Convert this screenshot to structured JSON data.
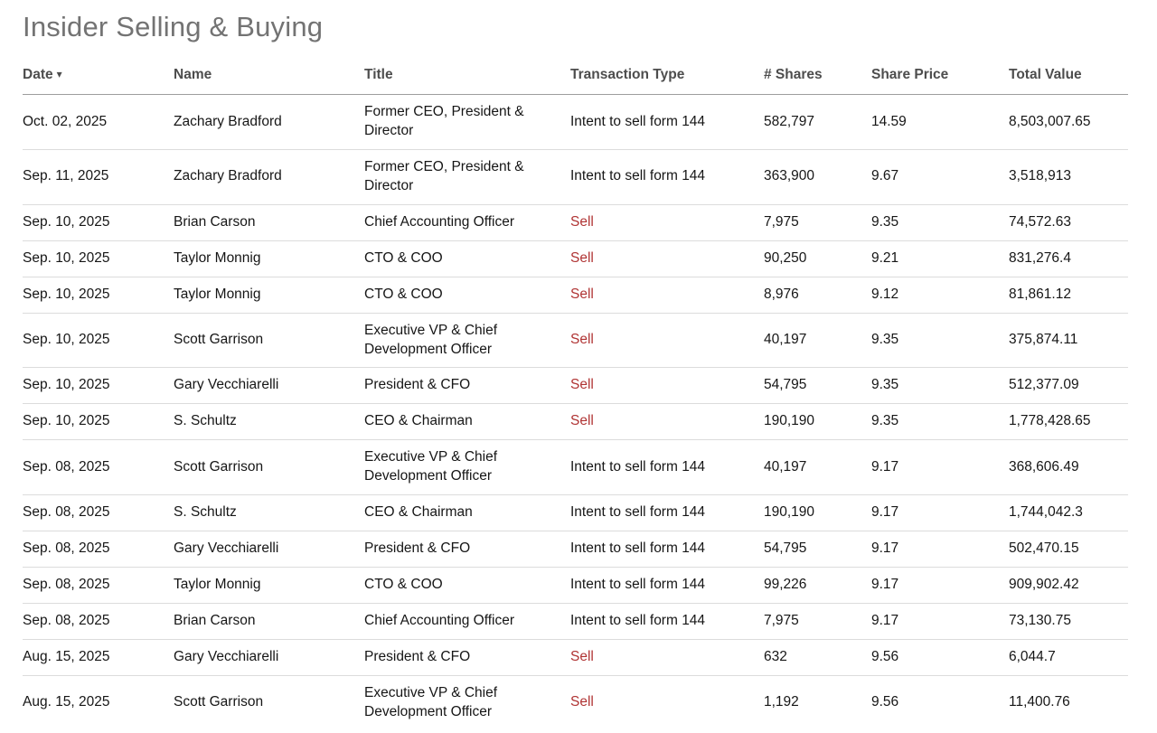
{
  "page": {
    "title": "Insider Selling & Buying"
  },
  "colors": {
    "title_gray": "#737373",
    "header_text": "#4d4d4d",
    "body_text": "#161616",
    "sell_red": "#b03434",
    "header_border": "#9e9e9e",
    "row_border": "#dcdcdc",
    "page_bg": "#ffffff"
  },
  "icons": {
    "sort_desc": "▾"
  },
  "table": {
    "columns": [
      "Date",
      "Name",
      "Title",
      "Transaction Type",
      "# Shares",
      "Share Price",
      "Total Value"
    ],
    "sorted_column": "Date",
    "sort_direction": "descending",
    "sell_transaction_label": "Sell",
    "rows": [
      {
        "date": "Oct. 02, 2025",
        "name": "Zachary Bradford",
        "title": "Former CEO, President & Director",
        "transaction_type": "Intent to sell form 144",
        "shares": "582,797",
        "share_price": "14.59",
        "total_value": "8,503,007.65"
      },
      {
        "date": "Sep. 11, 2025",
        "name": "Zachary Bradford",
        "title": "Former CEO, President & Director",
        "transaction_type": "Intent to sell form 144",
        "shares": "363,900",
        "share_price": "9.67",
        "total_value": "3,518,913"
      },
      {
        "date": "Sep. 10, 2025",
        "name": "Brian Carson",
        "title": "Chief Accounting Officer",
        "transaction_type": "Sell",
        "shares": "7,975",
        "share_price": "9.35",
        "total_value": "74,572.63"
      },
      {
        "date": "Sep. 10, 2025",
        "name": "Taylor Monnig",
        "title": "CTO & COO",
        "transaction_type": "Sell",
        "shares": "90,250",
        "share_price": "9.21",
        "total_value": "831,276.4"
      },
      {
        "date": "Sep. 10, 2025",
        "name": "Taylor Monnig",
        "title": "CTO & COO",
        "transaction_type": "Sell",
        "shares": "8,976",
        "share_price": "9.12",
        "total_value": "81,861.12"
      },
      {
        "date": "Sep. 10, 2025",
        "name": "Scott Garrison",
        "title": "Executive VP & Chief Development Officer",
        "transaction_type": "Sell",
        "shares": "40,197",
        "share_price": "9.35",
        "total_value": "375,874.11"
      },
      {
        "date": "Sep. 10, 2025",
        "name": "Gary Vecchiarelli",
        "title": "President & CFO",
        "transaction_type": "Sell",
        "shares": "54,795",
        "share_price": "9.35",
        "total_value": "512,377.09"
      },
      {
        "date": "Sep. 10, 2025",
        "name": "S. Schultz",
        "title": "CEO & Chairman",
        "transaction_type": "Sell",
        "shares": "190,190",
        "share_price": "9.35",
        "total_value": "1,778,428.65"
      },
      {
        "date": "Sep. 08, 2025",
        "name": "Scott Garrison",
        "title": "Executive VP & Chief Development Officer",
        "transaction_type": "Intent to sell form 144",
        "shares": "40,197",
        "share_price": "9.17",
        "total_value": "368,606.49"
      },
      {
        "date": "Sep. 08, 2025",
        "name": "S. Schultz",
        "title": "CEO & Chairman",
        "transaction_type": "Intent to sell form 144",
        "shares": "190,190",
        "share_price": "9.17",
        "total_value": "1,744,042.3"
      },
      {
        "date": "Sep. 08, 2025",
        "name": "Gary Vecchiarelli",
        "title": "President & CFO",
        "transaction_type": "Intent to sell form 144",
        "shares": "54,795",
        "share_price": "9.17",
        "total_value": "502,470.15"
      },
      {
        "date": "Sep. 08, 2025",
        "name": "Taylor Monnig",
        "title": "CTO & COO",
        "transaction_type": "Intent to sell form 144",
        "shares": "99,226",
        "share_price": "9.17",
        "total_value": "909,902.42"
      },
      {
        "date": "Sep. 08, 2025",
        "name": "Brian Carson",
        "title": "Chief Accounting Officer",
        "transaction_type": "Intent to sell form 144",
        "shares": "7,975",
        "share_price": "9.17",
        "total_value": "73,130.75"
      },
      {
        "date": "Aug. 15, 2025",
        "name": "Gary Vecchiarelli",
        "title": "President & CFO",
        "transaction_type": "Sell",
        "shares": "632",
        "share_price": "9.56",
        "total_value": "6,044.7"
      },
      {
        "date": "Aug. 15, 2025",
        "name": "Scott Garrison",
        "title": "Executive VP & Chief Development Officer",
        "transaction_type": "Sell",
        "shares": "1,192",
        "share_price": "9.56",
        "total_value": "11,400.76"
      }
    ]
  }
}
